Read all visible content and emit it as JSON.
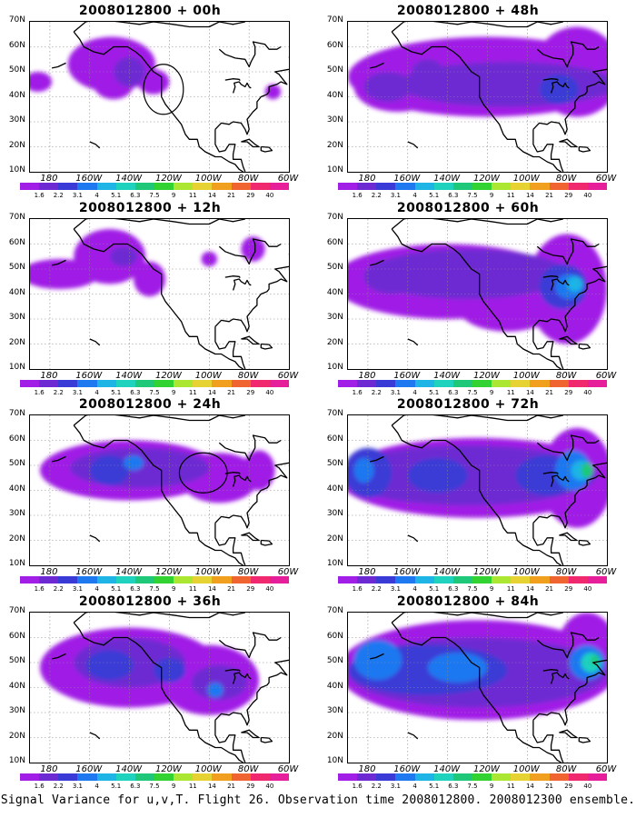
{
  "panels": [
    {
      "title": "2008012800 + 00h"
    },
    {
      "title": "2008012800 + 48h"
    },
    {
      "title": "2008012800 + 12h"
    },
    {
      "title": "2008012800 + 60h"
    },
    {
      "title": "2008012800 + 24h"
    },
    {
      "title": "2008012800 + 72h"
    },
    {
      "title": "2008012800 + 36h"
    },
    {
      "title": "2008012800 + 84h"
    }
  ],
  "lat_labels": [
    "70N",
    "60N",
    "50N",
    "40N",
    "30N",
    "20N",
    "10N"
  ],
  "lon_labels": [
    "180",
    "160W",
    "140W",
    "120W",
    "100W",
    "80W",
    "60W"
  ],
  "colorbar": {
    "values": [
      "1.6",
      "2.2",
      "3.1",
      "4",
      "5.1",
      "6.3",
      "7.5",
      "9",
      "11",
      "14",
      "21",
      "29",
      "40"
    ],
    "colors": [
      "#a01ee6",
      "#6e2ad2",
      "#3a3ad6",
      "#1e78f0",
      "#1eb4e6",
      "#1ed2be",
      "#1ec878",
      "#32d232",
      "#aae632",
      "#e6d232",
      "#f0a01e",
      "#f06432",
      "#f0286e",
      "#e61e9a"
    ]
  },
  "footer": "Signal Variance for u,v,T. Flight 26. Observation time 2008012800. 2008012300 ensemble."
}
